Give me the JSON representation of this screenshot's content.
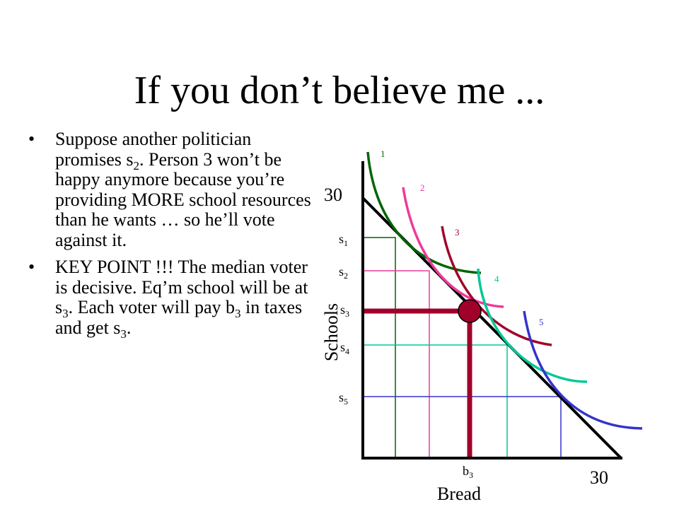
{
  "title": "If you don’t believe me ...",
  "bullets": [
    {
      "parts": [
        "Suppose another politician promises s",
        "2",
        ".  Person 3 won’t be happy anymore because you’re providing MORE school resources than he wants … so he’ll vote against it."
      ]
    },
    {
      "parts": [
        "KEY POINT !!! The median voter is decisive. Eq’m school will be at s",
        "3",
        ". Each voter will pay b",
        "3",
        " in taxes and get s",
        "3",
        "."
      ]
    }
  ],
  "diagram": {
    "y_axis_label": "Schools",
    "x_axis_label": "Bread",
    "y_max_label": "30",
    "x_max_label": "30",
    "s_labels": [
      {
        "base": "s",
        "sub": "1"
      },
      {
        "base": "s",
        "sub": "2"
      },
      {
        "base": "s",
        "sub": "3"
      },
      {
        "base": "s",
        "sub": "4"
      },
      {
        "base": "s",
        "sub": "5"
      }
    ],
    "b_label": {
      "base": "b",
      "sub": "3"
    },
    "curve_labels": [
      "1",
      "2",
      "3",
      "4",
      "5"
    ],
    "colors": {
      "curve1": "#006400",
      "curve2": "#ee3a9a",
      "curve3": "#a0002a",
      "curve4": "#00c896",
      "curve5": "#3333cc",
      "median": "#a0002a",
      "axes": "#000000"
    }
  }
}
